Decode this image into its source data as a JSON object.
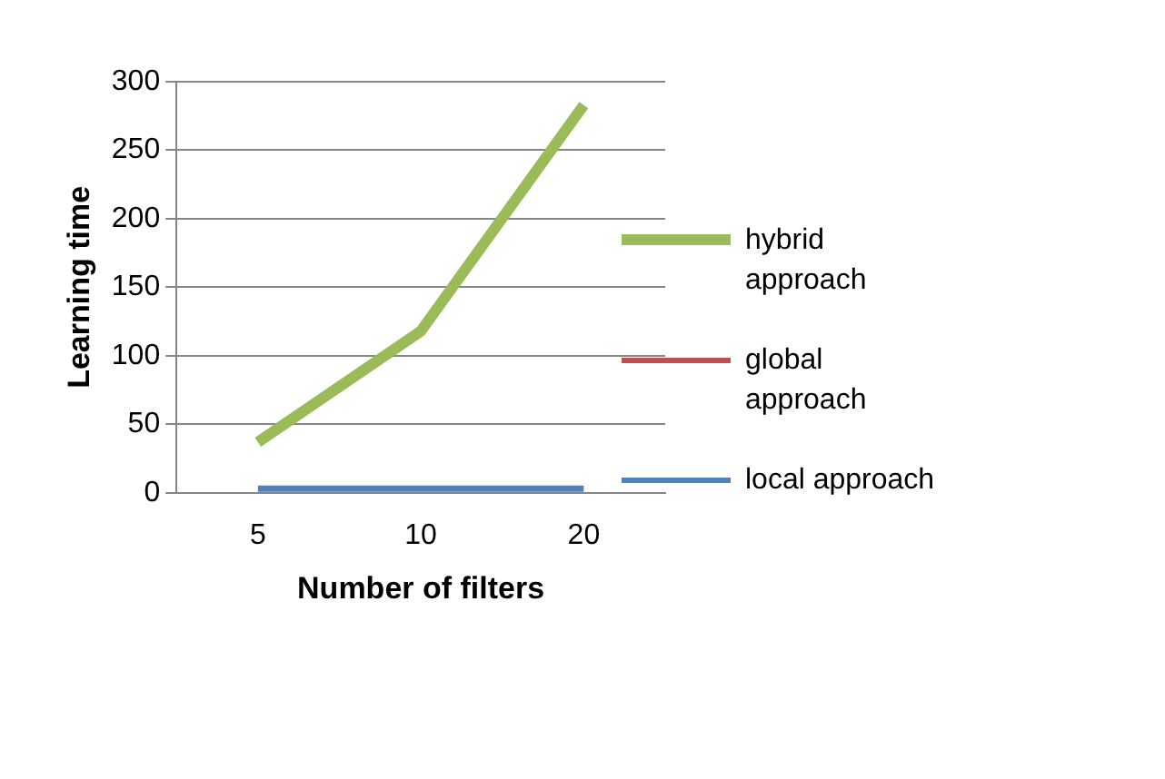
{
  "chart_data": {
    "type": "line",
    "xlabel": "Number of filters",
    "ylabel": "Learning time",
    "categories": [
      "5",
      "10",
      "20"
    ],
    "series": [
      {
        "name": "hybrid approach",
        "color": "#9bbb59",
        "values": [
          37,
          118,
          283
        ]
      },
      {
        "name": "global approach",
        "color": "#c0504d",
        "values": [
          null,
          null,
          null
        ]
      },
      {
        "name": "local approach",
        "color": "#4f81bd",
        "values": [
          3,
          3,
          3
        ]
      }
    ],
    "ylim": [
      0,
      300
    ],
    "yticks": [
      0,
      50,
      100,
      150,
      200,
      250,
      300
    ],
    "grid": "y",
    "legend": "right",
    "marker": "none",
    "line_style": "solid"
  }
}
